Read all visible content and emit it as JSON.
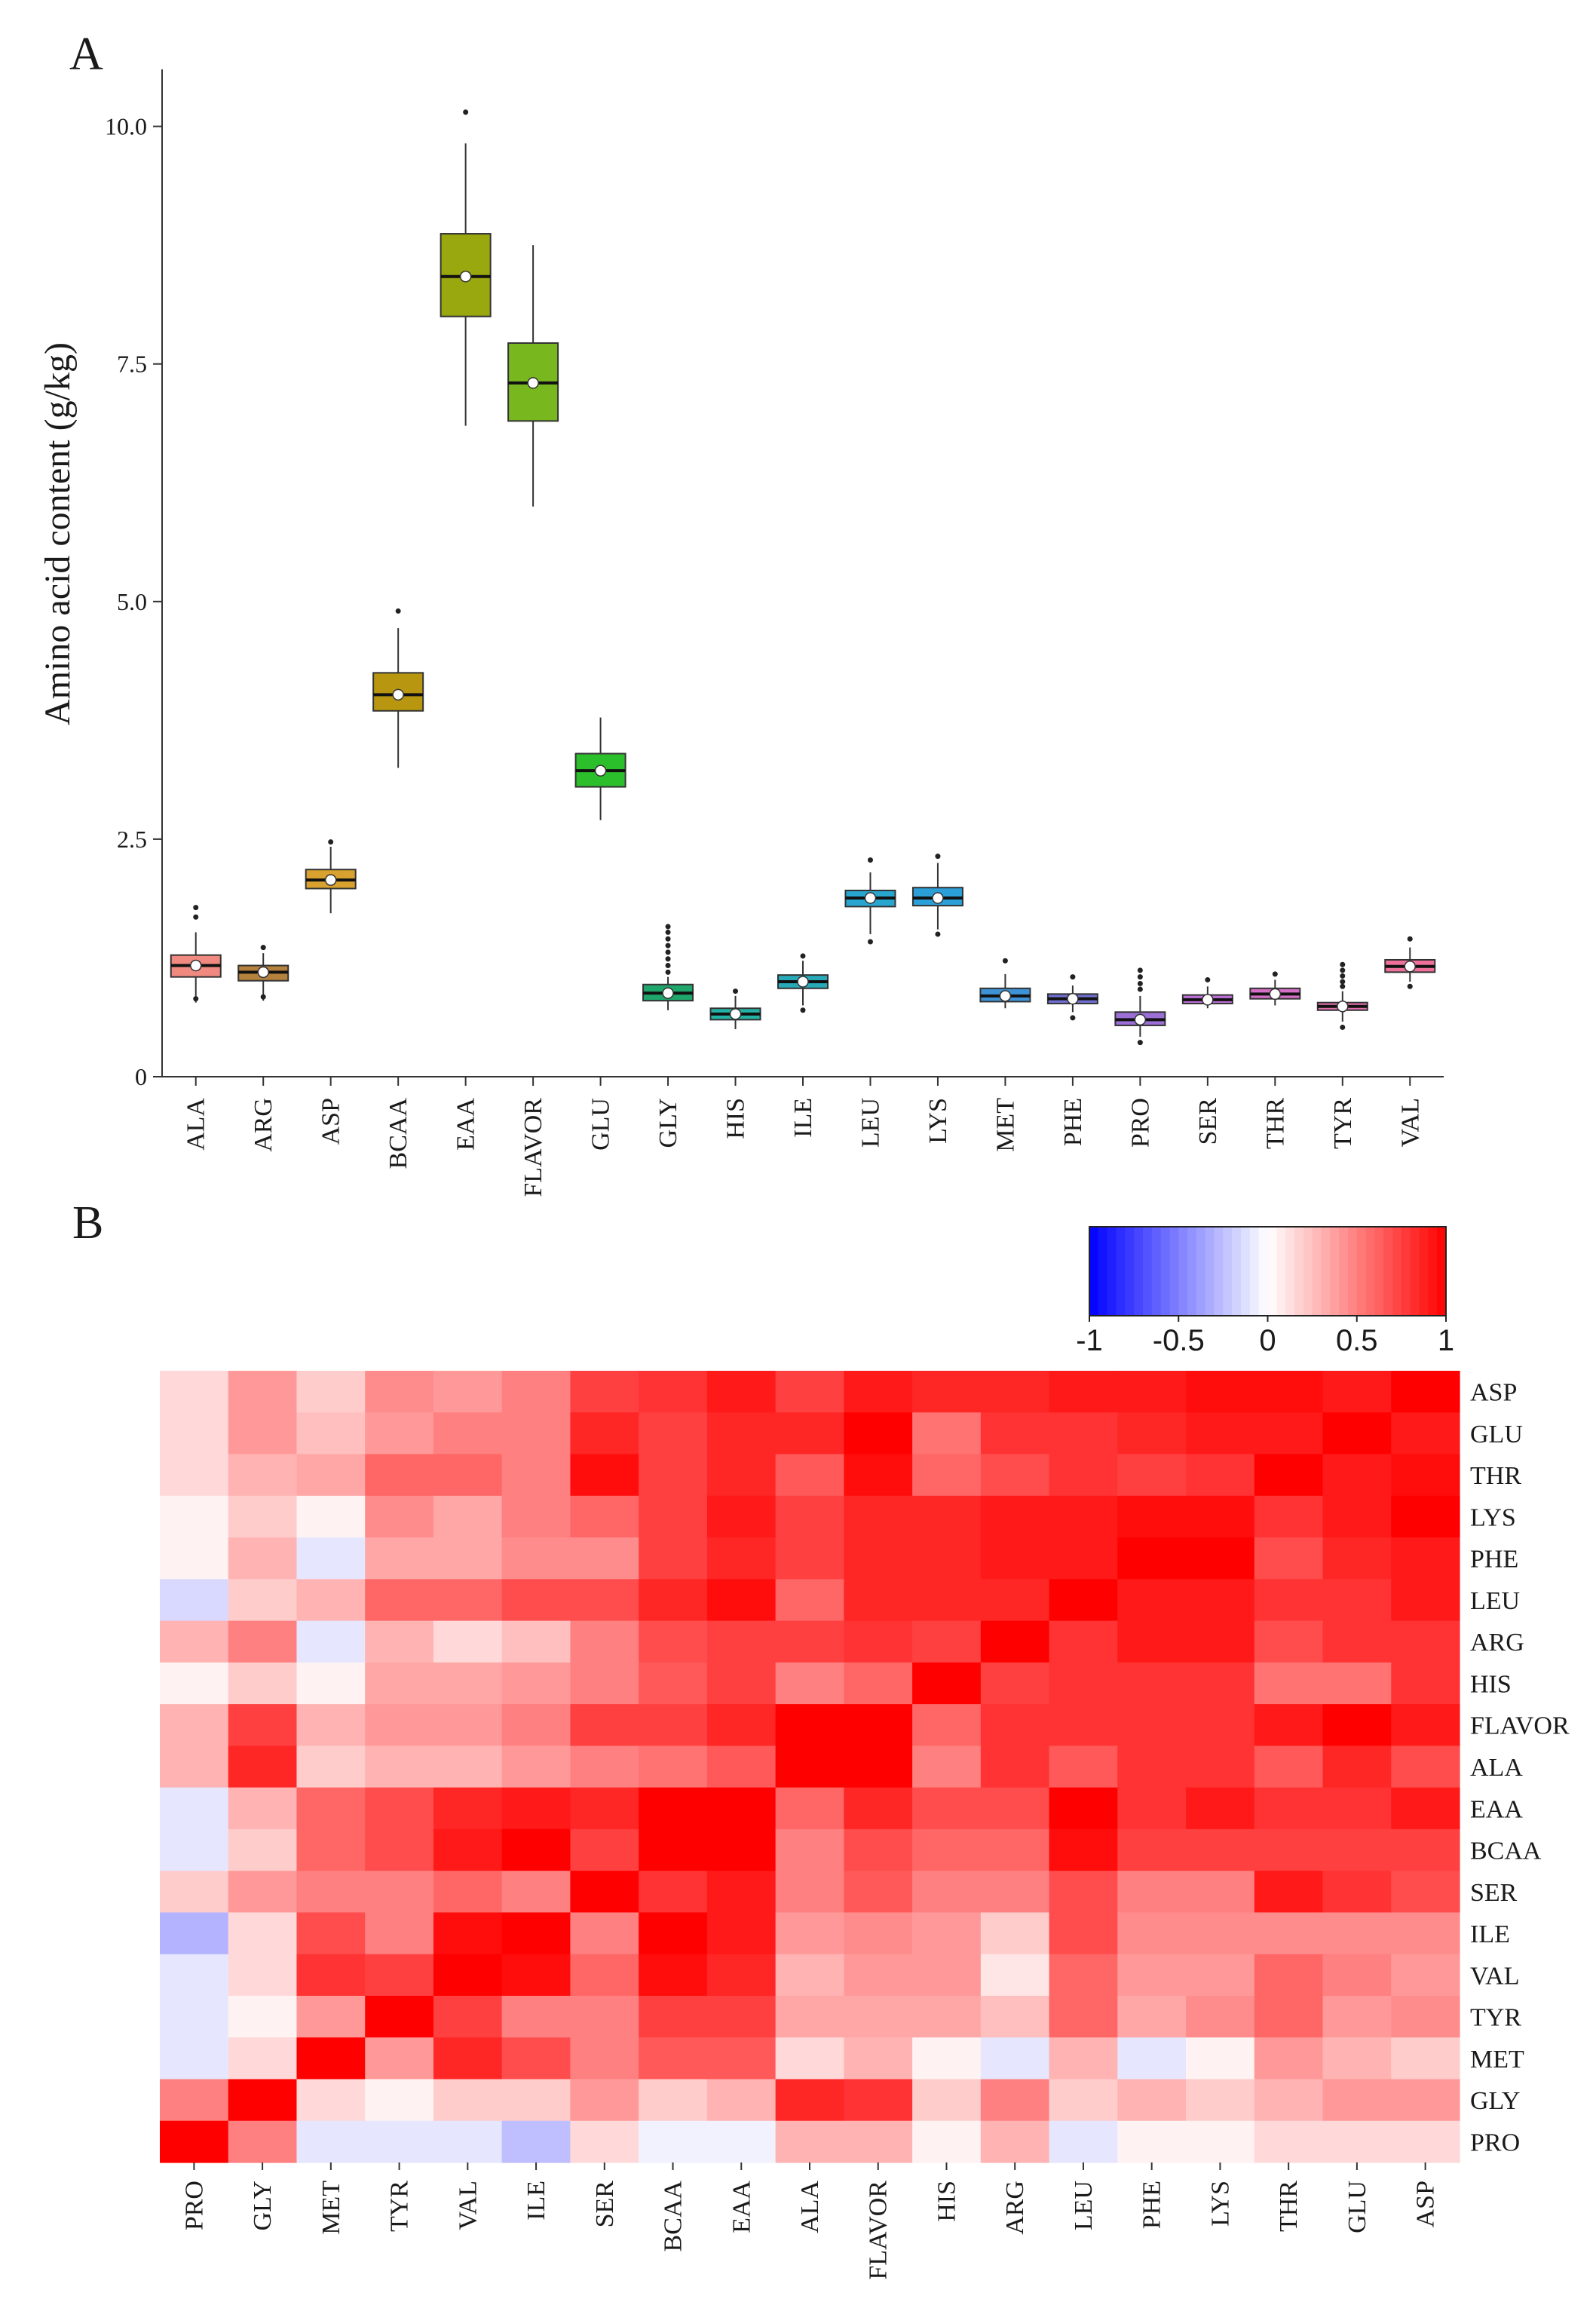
{
  "figure": {
    "panel_a_label": "A",
    "panel_b_label": "B"
  },
  "chart_data": [
    {
      "type": "box",
      "panel": "A",
      "ylabel": "Amino acid content (g/kg)",
      "xlabel": "",
      "ylim": [
        0,
        10.6
      ],
      "yticks": [
        0,
        2.5,
        5.0,
        7.5,
        10.0
      ],
      "ytick_labels": [
        "0",
        "2.5",
        "5.0",
        "7.5",
        "10.0"
      ],
      "categories": [
        "ALA",
        "ARG",
        "ASP",
        "BCAA",
        "EAA",
        "FLAVOR",
        "GLU",
        "GLY",
        "HIS",
        "ILE",
        "LEU",
        "LYS",
        "MET",
        "PHE",
        "PRO",
        "SER",
        "THR",
        "TYR",
        "VAL"
      ],
      "colors": [
        "#f08a80",
        "#b5823e",
        "#d9a22e",
        "#b8960f",
        "#9aa80f",
        "#79b71f",
        "#2cbf2c",
        "#1fa66b",
        "#23b3a4",
        "#27a9b8",
        "#29a6cf",
        "#2a9fd8",
        "#3e93d6",
        "#6f6fd0",
        "#9b6fd6",
        "#c06fd9",
        "#d66fc7",
        "#e36fae",
        "#ef6f9b"
      ],
      "boxes": [
        {
          "min": 0.78,
          "q1": 1.05,
          "median": 1.17,
          "q3": 1.28,
          "max": 1.52,
          "mean": 1.17,
          "outliers": [
            1.78,
            1.68,
            0.82
          ]
        },
        {
          "min": 0.8,
          "q1": 1.01,
          "median": 1.1,
          "q3": 1.17,
          "max": 1.3,
          "mean": 1.1,
          "outliers": [
            1.36,
            0.84
          ]
        },
        {
          "min": 1.72,
          "q1": 1.98,
          "median": 2.07,
          "q3": 2.18,
          "max": 2.42,
          "mean": 2.07,
          "outliers": [
            2.47
          ]
        },
        {
          "min": 3.25,
          "q1": 3.85,
          "median": 4.02,
          "q3": 4.25,
          "max": 4.72,
          "mean": 4.02,
          "outliers": [
            4.9
          ]
        },
        {
          "min": 6.85,
          "q1": 8.0,
          "median": 8.42,
          "q3": 8.87,
          "max": 9.82,
          "mean": 8.42,
          "outliers": [
            10.15
          ]
        },
        {
          "min": 6.0,
          "q1": 6.9,
          "median": 7.3,
          "q3": 7.72,
          "max": 8.75,
          "mean": 7.3,
          "outliers": []
        },
        {
          "min": 2.7,
          "q1": 3.05,
          "median": 3.22,
          "q3": 3.4,
          "max": 3.78,
          "mean": 3.22,
          "outliers": []
        },
        {
          "min": 0.7,
          "q1": 0.8,
          "median": 0.88,
          "q3": 0.97,
          "max": 1.05,
          "mean": 0.88,
          "outliers": [
            1.1,
            1.17,
            1.24,
            1.31,
            1.38,
            1.45,
            1.52,
            1.58
          ]
        },
        {
          "min": 0.5,
          "q1": 0.6,
          "median": 0.66,
          "q3": 0.72,
          "max": 0.85,
          "mean": 0.66,
          "outliers": [
            0.9
          ]
        },
        {
          "min": 0.75,
          "q1": 0.93,
          "median": 1.0,
          "q3": 1.07,
          "max": 1.22,
          "mean": 1.0,
          "outliers": [
            0.7,
            1.27
          ]
        },
        {
          "min": 1.5,
          "q1": 1.79,
          "median": 1.88,
          "q3": 1.96,
          "max": 2.15,
          "mean": 1.88,
          "outliers": [
            2.28,
            1.42
          ]
        },
        {
          "min": 1.55,
          "q1": 1.8,
          "median": 1.88,
          "q3": 1.99,
          "max": 2.25,
          "mean": 1.88,
          "outliers": [
            2.32,
            1.5
          ]
        },
        {
          "min": 0.72,
          "q1": 0.79,
          "median": 0.85,
          "q3": 0.93,
          "max": 1.08,
          "mean": 0.85,
          "outliers": [
            1.22
          ]
        },
        {
          "min": 0.68,
          "q1": 0.77,
          "median": 0.82,
          "q3": 0.87,
          "max": 0.96,
          "mean": 0.82,
          "outliers": [
            1.05,
            0.62
          ]
        },
        {
          "min": 0.42,
          "q1": 0.54,
          "median": 0.6,
          "q3": 0.68,
          "max": 0.85,
          "mean": 0.6,
          "outliers": [
            0.92,
            0.98,
            1.05,
            1.12,
            0.36
          ]
        },
        {
          "min": 0.72,
          "q1": 0.77,
          "median": 0.81,
          "q3": 0.86,
          "max": 0.95,
          "mean": 0.81,
          "outliers": [
            1.02
          ]
        },
        {
          "min": 0.75,
          "q1": 0.82,
          "median": 0.87,
          "q3": 0.93,
          "max": 1.02,
          "mean": 0.87,
          "outliers": [
            1.08
          ]
        },
        {
          "min": 0.58,
          "q1": 0.7,
          "median": 0.74,
          "q3": 0.78,
          "max": 0.9,
          "mean": 0.74,
          "outliers": [
            0.95,
            1.0,
            1.06,
            1.12,
            1.18,
            0.52
          ]
        },
        {
          "min": 1.0,
          "q1": 1.1,
          "median": 1.16,
          "q3": 1.23,
          "max": 1.36,
          "mean": 1.16,
          "outliers": [
            1.45,
            0.95
          ]
        }
      ]
    },
    {
      "type": "heatmap",
      "panel": "B",
      "title": "",
      "colorbar": {
        "ticks": [
          -1,
          -0.5,
          0,
          0.5,
          1
        ],
        "tick_labels": [
          "-1",
          "-0.5",
          "0",
          "0.5",
          "1"
        ],
        "range": [
          -1,
          1
        ]
      },
      "row_labels": [
        "ASP",
        "GLU",
        "THR",
        "LYS",
        "PHE",
        "LEU",
        "ARG",
        "HIS",
        "FLAVOR",
        "ALA",
        "EAA",
        "BCAA",
        "SER",
        "ILE",
        "VAL",
        "TYR",
        "MET",
        "GLY",
        "PRO"
      ],
      "col_labels": [
        "PRO",
        "GLY",
        "MET",
        "TYR",
        "VAL",
        "ILE",
        "SER",
        "BCAA",
        "EAA",
        "ALA",
        "FLAVOR",
        "HIS",
        "ARG",
        "LEU",
        "PHE",
        "LYS",
        "THR",
        "GLU",
        "ASP"
      ],
      "values": [
        [
          0.15,
          0.4,
          0.2,
          0.45,
          0.4,
          0.5,
          0.75,
          0.8,
          0.9,
          0.75,
          0.9,
          0.85,
          0.85,
          0.9,
          0.9,
          0.95,
          0.95,
          0.9,
          1.0
        ],
        [
          0.15,
          0.4,
          0.25,
          0.4,
          0.5,
          0.5,
          0.85,
          0.75,
          0.85,
          0.85,
          1.0,
          0.55,
          0.8,
          0.8,
          0.85,
          0.9,
          0.9,
          1.0,
          0.9
        ],
        [
          0.15,
          0.3,
          0.35,
          0.6,
          0.6,
          0.5,
          0.95,
          0.75,
          0.85,
          0.65,
          0.95,
          0.6,
          0.7,
          0.8,
          0.75,
          0.8,
          1.0,
          0.9,
          0.95
        ],
        [
          0.05,
          0.2,
          0.05,
          0.45,
          0.35,
          0.5,
          0.6,
          0.75,
          0.9,
          0.75,
          0.85,
          0.85,
          0.9,
          0.9,
          0.95,
          0.95,
          0.8,
          0.9,
          1.0
        ],
        [
          0.05,
          0.3,
          -0.1,
          0.35,
          0.35,
          0.45,
          0.45,
          0.75,
          0.85,
          0.75,
          0.85,
          0.85,
          0.9,
          0.9,
          1.0,
          1.0,
          0.7,
          0.85,
          0.9
        ],
        [
          -0.15,
          0.2,
          0.3,
          0.6,
          0.6,
          0.7,
          0.7,
          0.85,
          0.95,
          0.6,
          0.85,
          0.85,
          0.85,
          1.0,
          0.9,
          0.9,
          0.8,
          0.8,
          0.9
        ],
        [
          0.3,
          0.5,
          -0.1,
          0.3,
          0.15,
          0.25,
          0.5,
          0.7,
          0.75,
          0.75,
          0.8,
          0.75,
          1.0,
          0.8,
          0.9,
          0.9,
          0.7,
          0.8,
          0.8
        ],
        [
          0.05,
          0.2,
          0.05,
          0.35,
          0.35,
          0.4,
          0.5,
          0.65,
          0.75,
          0.5,
          0.6,
          1.0,
          0.75,
          0.8,
          0.8,
          0.8,
          0.55,
          0.55,
          0.8
        ],
        [
          0.3,
          0.75,
          0.3,
          0.4,
          0.4,
          0.5,
          0.75,
          0.75,
          0.85,
          1.0,
          1.0,
          0.6,
          0.8,
          0.8,
          0.8,
          0.8,
          0.9,
          1.0,
          0.9
        ],
        [
          0.3,
          0.85,
          0.2,
          0.3,
          0.3,
          0.4,
          0.5,
          0.55,
          0.65,
          1.0,
          1.0,
          0.5,
          0.8,
          0.65,
          0.8,
          0.8,
          0.65,
          0.85,
          0.7
        ],
        [
          -0.1,
          0.3,
          0.6,
          0.7,
          0.85,
          0.9,
          0.85,
          1.0,
          1.0,
          0.6,
          0.85,
          0.7,
          0.7,
          1.0,
          0.8,
          0.9,
          0.8,
          0.8,
          0.9
        ],
        [
          -0.1,
          0.2,
          0.6,
          0.7,
          0.9,
          1.0,
          0.75,
          1.0,
          1.0,
          0.5,
          0.7,
          0.6,
          0.6,
          0.95,
          0.75,
          0.75,
          0.75,
          0.75,
          0.75
        ],
        [
          0.2,
          0.4,
          0.5,
          0.5,
          0.6,
          0.5,
          1.0,
          0.8,
          0.9,
          0.5,
          0.65,
          0.5,
          0.5,
          0.7,
          0.5,
          0.5,
          0.9,
          0.8,
          0.7
        ],
        [
          -0.3,
          0.15,
          0.7,
          0.5,
          0.95,
          1.0,
          0.5,
          1.0,
          0.9,
          0.4,
          0.45,
          0.4,
          0.2,
          0.7,
          0.45,
          0.45,
          0.45,
          0.45,
          0.45
        ],
        [
          -0.1,
          0.15,
          0.8,
          0.75,
          1.0,
          0.95,
          0.6,
          0.95,
          0.85,
          0.3,
          0.4,
          0.4,
          0.1,
          0.6,
          0.4,
          0.4,
          0.6,
          0.5,
          0.4
        ],
        [
          -0.1,
          0.05,
          0.4,
          1.0,
          0.75,
          0.5,
          0.5,
          0.75,
          0.75,
          0.35,
          0.35,
          0.35,
          0.25,
          0.6,
          0.35,
          0.45,
          0.6,
          0.4,
          0.45
        ],
        [
          -0.1,
          0.15,
          1.0,
          0.4,
          0.85,
          0.7,
          0.5,
          0.65,
          0.65,
          0.15,
          0.3,
          0.05,
          -0.1,
          0.3,
          -0.1,
          0.05,
          0.4,
          0.3,
          0.2
        ],
        [
          0.5,
          1.0,
          0.15,
          0.05,
          0.2,
          0.2,
          0.4,
          0.2,
          0.3,
          0.85,
          0.8,
          0.2,
          0.5,
          0.2,
          0.3,
          0.2,
          0.3,
          0.4,
          0.4
        ],
        [
          1.0,
          0.5,
          -0.1,
          -0.1,
          -0.1,
          -0.25,
          0.15,
          -0.05,
          -0.05,
          0.3,
          0.3,
          0.05,
          0.3,
          -0.1,
          0.05,
          0.05,
          0.15,
          0.15,
          0.15
        ]
      ]
    }
  ]
}
